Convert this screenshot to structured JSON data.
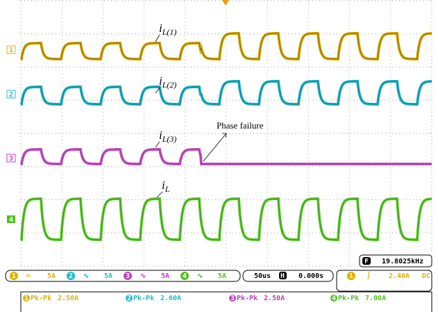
{
  "channels": [
    {
      "number": "1",
      "coupling": "═",
      "scale": "5A"
    },
    {
      "number": "2",
      "coupling": "∿",
      "scale": "5A"
    },
    {
      "number": "3",
      "coupling": "∿",
      "scale": "5A"
    },
    {
      "number": "4",
      "coupling": "∿",
      "scale": "5A"
    }
  ],
  "annotations": {
    "il1": {
      "main": "i",
      "sub": "L(1)"
    },
    "il2": {
      "main": "i",
      "sub": "L(2)"
    },
    "il3": {
      "main": "i",
      "sub": "L(3)"
    },
    "il": {
      "main": "i",
      "sub": "L"
    },
    "phase_failure": "Phase failure"
  },
  "frequency": {
    "icon": "F",
    "value": "19.8025kHz"
  },
  "timebase": {
    "scale": "50us",
    "icon": "H",
    "delay": "0.000s"
  },
  "trigger": {
    "channel": "1",
    "slope": "∫",
    "level": "2.40A",
    "coupling": "DC"
  },
  "measurements": [
    {
      "channel": "1",
      "label": "Pk-Pk",
      "value": "2.50A"
    },
    {
      "channel": "2",
      "label": "Pk-Pk",
      "value": "2.60A"
    },
    {
      "channel": "3",
      "label": "Pk-Pk",
      "value": "2.50A"
    },
    {
      "channel": "4",
      "label": "Pk-Pk",
      "value": "7.00A"
    }
  ]
}
